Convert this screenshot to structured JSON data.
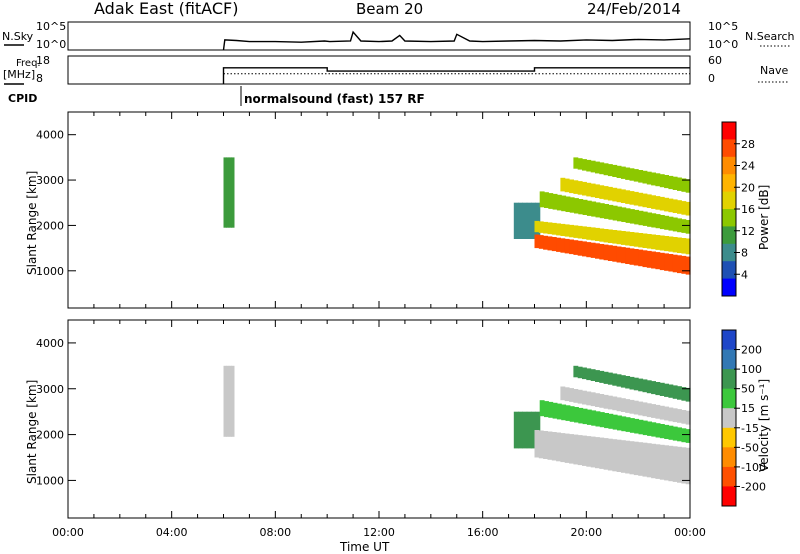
{
  "header": {
    "station": "Adak East (fitACF)",
    "beam": "Beam 20",
    "date": "24/Feb/2014"
  },
  "noise_panel": {
    "left_label": "N.Sky",
    "right_label": "N.Search",
    "left_ticks": [
      "10^5",
      "10^0"
    ],
    "right_ticks": [
      "10^5",
      "10^0"
    ],
    "series": [
      {
        "name": "N.Sky",
        "style": "solid"
      },
      {
        "name": "N.Search",
        "style": "dotted"
      }
    ]
  },
  "freq_panel": {
    "left_label": "Freq.",
    "left_unit": "[MHz]",
    "right_label": "Nave",
    "left_ticks": [
      "18",
      "8"
    ],
    "right_ticks": [
      "60",
      "0"
    ],
    "series": [
      {
        "name": "Freq.",
        "style": "solid"
      },
      {
        "name": "Nave",
        "style": "dotted"
      }
    ]
  },
  "cpid": {
    "label": "CPID",
    "text": "normalsound (fast) 157 RF"
  },
  "x_axis": {
    "label": "Time UT",
    "ticks": [
      "00:00",
      "04:00",
      "08:00",
      "12:00",
      "16:00",
      "20:00",
      "00:00"
    ]
  },
  "power_colorbar": {
    "label": "Power [dB]",
    "ticks": [
      "28",
      "24",
      "20",
      "16",
      "12",
      "8",
      "4"
    ],
    "colors": [
      "#ff0000",
      "#ff4b00",
      "#ff8c00",
      "#ffb400",
      "#e1d200",
      "#8cc800",
      "#3c9b3c",
      "#3c8c8c",
      "#1e50b4",
      "#0000ff"
    ]
  },
  "velocity_colorbar": {
    "label": "Velocity [m s⁻¹]",
    "ticks": [
      "200",
      "100",
      "50",
      "15",
      "-15",
      "-50",
      "-100",
      "-200"
    ],
    "colors": [
      "#1e46c8",
      "#3278b4",
      "#3c9650",
      "#3cc83c",
      "#c8c8c8",
      "#ffc800",
      "#ff8c00",
      "#ff5000",
      "#ff0000"
    ]
  },
  "chart_data": [
    {
      "type": "line",
      "title": "Adak East (fitACF) Beam 20 24/Feb/2014",
      "xlabel": "",
      "ylabel": "N.Sky",
      "xlim_hours": [
        0,
        24
      ],
      "yscale": "log",
      "series": [
        {
          "name": "N.Sky",
          "x": [
            6.0,
            6.05,
            6.5,
            7.0,
            8.0,
            9.0,
            9.9,
            10.1,
            10.9,
            11.0,
            11.3,
            12.0,
            12.5,
            12.8,
            13.0,
            14.0,
            14.9,
            15.0,
            15.5,
            16.0,
            17.0,
            18.0,
            19.0,
            20.0,
            21.0,
            22.0,
            23.0,
            24.0
          ],
          "y_log10": [
            0,
            1.8,
            1.7,
            1.5,
            1.5,
            1.4,
            1.6,
            1.5,
            1.6,
            3.2,
            1.6,
            1.5,
            1.6,
            2.6,
            1.6,
            1.5,
            1.6,
            2.8,
            1.6,
            1.5,
            1.6,
            1.7,
            1.6,
            1.8,
            1.7,
            1.9,
            1.8,
            2.0
          ]
        }
      ]
    },
    {
      "type": "line",
      "title": "",
      "xlabel": "",
      "ylabel": "Freq. [MHz]",
      "xlim_hours": [
        0,
        24
      ],
      "ylim": [
        8,
        18
      ],
      "series": [
        {
          "name": "Freq.",
          "x": [
            6.0,
            6.0,
            10.0,
            10.0,
            18.0,
            18.0,
            24.0
          ],
          "y": [
            8,
            13.8,
            13.8,
            12.6,
            12.6,
            13.8,
            13.8
          ]
        },
        {
          "name": "Nave",
          "x": [
            6.0,
            24.0
          ],
          "y_right": [
            22,
            22
          ],
          "ylim_right": [
            0,
            60
          ]
        }
      ]
    },
    {
      "type": "heatmap",
      "title": "",
      "xlabel": "",
      "ylabel": "Slant Range [km]",
      "xlim_hours": [
        0,
        24
      ],
      "ylim": [
        180,
        4500
      ],
      "yticks": [
        1000,
        2000,
        3000,
        4000
      ],
      "colorbar": "Power [dB]",
      "clim": [
        0,
        32
      ],
      "regions": [
        {
          "t0": 6.0,
          "t1": 6.4,
          "r0": 1950,
          "r1": 3500,
          "power": 12
        },
        {
          "t0": 17.2,
          "t1": 18.2,
          "r0": 1700,
          "r1": 2500,
          "power": 6
        },
        {
          "t0": 18.0,
          "t1": 24.0,
          "r0_start": 1500,
          "r0_end": 900,
          "r1_start": 1800,
          "r1_end": 1300,
          "power": 27
        },
        {
          "t0": 18.0,
          "t1": 24.0,
          "r0_start": 1850,
          "r0_end": 1350,
          "r1_start": 2100,
          "r1_end": 1700,
          "power": 17
        },
        {
          "t0": 18.2,
          "t1": 24.0,
          "r0_start": 2400,
          "r0_end": 1800,
          "r1_start": 2750,
          "r1_end": 2100,
          "power": 14
        },
        {
          "t0": 19.0,
          "t1": 24.0,
          "r0_start": 2750,
          "r0_end": 2200,
          "r1_start": 3050,
          "r1_end": 2500,
          "power": 18
        },
        {
          "t0": 19.5,
          "t1": 24.0,
          "r0_start": 3250,
          "r0_end": 2700,
          "r1_start": 3500,
          "r1_end": 3000,
          "power": 13
        }
      ]
    },
    {
      "type": "heatmap",
      "title": "",
      "xlabel": "Time UT",
      "ylabel": "Slant Range [km]",
      "xlim_hours": [
        0,
        24
      ],
      "ylim": [
        180,
        4500
      ],
      "yticks": [
        1000,
        2000,
        3000,
        4000
      ],
      "colorbar": "Velocity [m s⁻¹]",
      "clim": [
        -250,
        250
      ],
      "regions": [
        {
          "t0": 6.0,
          "t1": 6.4,
          "r0": 1950,
          "r1": 3500,
          "velocity": 0
        },
        {
          "t0": 17.2,
          "t1": 18.2,
          "r0": 1700,
          "r1": 2500,
          "velocity": 40
        },
        {
          "t0": 18.0,
          "t1": 24.0,
          "r0_start": 1500,
          "r0_end": 900,
          "r1_start": 2100,
          "r1_end": 1700,
          "velocity": 0
        },
        {
          "t0": 18.2,
          "t1": 24.0,
          "r0_start": 2400,
          "r0_end": 1800,
          "r1_start": 2750,
          "r1_end": 2100,
          "velocity": 30
        },
        {
          "t0": 19.0,
          "t1": 24.0,
          "r0_start": 2750,
          "r0_end": 2200,
          "r1_start": 3050,
          "r1_end": 2500,
          "velocity": 0
        },
        {
          "t0": 19.5,
          "t1": 24.0,
          "r0_start": 3250,
          "r0_end": 2700,
          "r1_start": 3500,
          "r1_end": 3000,
          "velocity": 40
        }
      ]
    }
  ]
}
